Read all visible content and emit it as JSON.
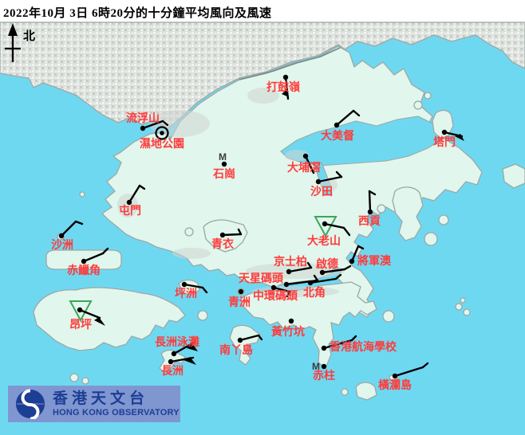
{
  "title": "2022年10月 3日 6時20分的十分鐘平均風向及風速",
  "north_label": "北",
  "colors": {
    "sea": "#6FD8F1",
    "land": "#E1F6EC",
    "coast": "#9BA8A6",
    "urban": "#DCE1DC",
    "label_red": "#FF3B3B",
    "barb_black": "#000000",
    "triangle_green": "#3FA45A",
    "logo_bar": "#8096D0",
    "logo_navy": "#1C3E94",
    "marker_gray": "#3B3B3B"
  },
  "logo": {
    "name_zh": "香港天文台",
    "name_en": "HONG KONG OBSERVATORY"
  },
  "stations": [
    {
      "id": "ta-kwu-ling",
      "name": "打鼓嶺",
      "label": [
        355,
        114
      ],
      "dot": [
        358,
        97
      ],
      "lines": [
        [
          [
            358,
            97
          ],
          [
            361,
            124
          ]
        ]
      ],
      "flags": [
        [
          [
            360,
            112
          ],
          [
            362,
            122
          ],
          [
            353,
            118
          ]
        ]
      ]
    },
    {
      "id": "lau-fau-shan",
      "name": "流浮山",
      "label": [
        179,
        153
      ],
      "dot": [
        179,
        161
      ],
      "lines": [
        [
          [
            179,
            161
          ],
          [
            204,
            152
          ]
        ],
        [
          [
            204,
            152
          ],
          [
            210,
            157
          ]
        ]
      ]
    },
    {
      "id": "wetland-park",
      "name": "濕地公園",
      "label": [
        203,
        185
      ],
      "dot": [
        203,
        167
      ],
      "marker": "calm"
    },
    {
      "id": "shek-kong",
      "name": "石崗",
      "label": [
        281,
        223
      ],
      "dot": [
        281,
        206
      ],
      "m": [
        279,
        201
      ]
    },
    {
      "id": "tai-mei-tuk",
      "name": "大美督",
      "label": [
        423,
        175
      ],
      "dot": [
        422,
        157
      ],
      "lines": [
        [
          [
            422,
            157
          ],
          [
            443,
            139
          ]
        ],
        [
          [
            443,
            139
          ],
          [
            450,
            145
          ]
        ]
      ]
    },
    {
      "id": "tai-po-kau",
      "name": "大埔滘",
      "label": [
        381,
        215
      ],
      "dot": [
        383,
        196
      ],
      "lines": [
        [
          [
            383,
            196
          ],
          [
            393,
            217
          ]
        ]
      ]
    },
    {
      "id": "sha-tin",
      "name": "沙田",
      "label": [
        403,
        245
      ],
      "dot": [
        399,
        228
      ],
      "lines": [
        [
          [
            399,
            228
          ],
          [
            428,
            222
          ]
        ],
        [
          [
            428,
            222
          ],
          [
            422,
            216
          ]
        ]
      ]
    },
    {
      "id": "tap-mun",
      "name": "塔門",
      "label": [
        557,
        183
      ],
      "dot": [
        557,
        166
      ],
      "lines": [
        [
          [
            557,
            166
          ],
          [
            579,
            171
          ]
        ]
      ],
      "flags": [
        [
          [
            577,
            168
          ],
          [
            582,
            177
          ],
          [
            570,
            171
          ]
        ]
      ]
    },
    {
      "id": "tuen-mun",
      "name": "屯門",
      "label": [
        163,
        269
      ],
      "dot": [
        162,
        254
      ],
      "lines": [
        [
          [
            162,
            254
          ],
          [
            175,
            233
          ]
        ],
        [
          [
            175,
            233
          ],
          [
            181,
            237
          ]
        ]
      ]
    },
    {
      "id": "sha-chau",
      "name": "沙洲",
      "label": [
        78,
        312
      ],
      "dot": [
        77,
        296
      ],
      "lines": [
        [
          [
            77,
            296
          ],
          [
            95,
            278
          ]
        ],
        [
          [
            95,
            278
          ],
          [
            103,
            281
          ]
        ]
      ]
    },
    {
      "id": "chek-lap-kok",
      "name": "赤鱲角",
      "label": [
        105,
        344
      ],
      "dot": [
        105,
        328
      ],
      "lines": [
        [
          [
            105,
            328
          ],
          [
            129,
            318
          ]
        ],
        [
          [
            129,
            318
          ],
          [
            135,
            312
          ]
        ]
      ]
    },
    {
      "id": "tsing-yi",
      "name": "青衣",
      "label": [
        279,
        311
      ],
      "dot": [
        279,
        295
      ],
      "lines": [
        [
          [
            279,
            295
          ],
          [
            302,
            294
          ]
        ],
        [
          [
            302,
            294
          ],
          [
            299,
            288
          ]
        ]
      ]
    },
    {
      "id": "tates-cairn",
      "name": "大老山",
      "label": [
        406,
        307
      ],
      "dot": [
        407,
        281
      ],
      "triangle": [
        [
          395,
          272
        ],
        [
          421,
          272
        ],
        [
          408,
          296
        ]
      ],
      "lines": [
        [
          [
            407,
            281
          ],
          [
            431,
            286
          ],
          [
            438,
            295
          ]
        ]
      ]
    },
    {
      "id": "sai-kung",
      "name": "西貢",
      "label": [
        463,
        282
      ],
      "dot": [
        464,
        266
      ],
      "lines": [
        [
          [
            464,
            266
          ],
          [
            463,
            240
          ]
        ],
        [
          [
            463,
            240
          ],
          [
            470,
            244
          ]
        ]
      ]
    },
    {
      "id": "tseung-kwan-o",
      "name": "將軍澳",
      "label": [
        469,
        332
      ],
      "dot": [
        441,
        328
      ],
      "lines": [
        [
          [
            441,
            328
          ],
          [
            449,
            309
          ]
        ],
        [
          [
            449,
            309
          ],
          [
            455,
            312
          ]
        ]
      ]
    },
    {
      "id": "kings-park",
      "name": "京士柏",
      "label": [
        364,
        333
      ],
      "dot": [
        362,
        341
      ],
      "lines": [
        [
          [
            362,
            341
          ],
          [
            390,
            336
          ]
        ],
        [
          [
            390,
            336
          ],
          [
            386,
            330
          ]
        ]
      ]
    },
    {
      "id": "kai-tak",
      "name": "啟德",
      "label": [
        410,
        336
      ],
      "dot": [
        404,
        342
      ],
      "lines": [
        [
          [
            404,
            342
          ],
          [
            432,
            338
          ]
        ],
        [
          [
            432,
            338
          ],
          [
            439,
            334
          ]
        ]
      ]
    },
    {
      "id": "star-ferry",
      "name": "天星碼頭",
      "label": [
        327,
        354
      ],
      "dot": [
        359,
        357
      ],
      "lines": [
        [
          [
            359,
            357
          ],
          [
            398,
            352
          ]
        ],
        [
          [
            398,
            352
          ],
          [
            394,
            346
          ]
        ]
      ]
    },
    {
      "id": "north-point",
      "name": "北角",
      "label": [
        394,
        372
      ],
      "dot": [
        389,
        355
      ],
      "lines": [
        [
          [
            389,
            355
          ],
          [
            421,
            350
          ]
        ],
        [
          [
            421,
            350
          ],
          [
            427,
            345
          ]
        ]
      ]
    },
    {
      "id": "central-pier",
      "name": "中環碼頭",
      "label": [
        345,
        376
      ],
      "dot": [
        343,
        361
      ],
      "lines": [
        [
          [
            343,
            361
          ],
          [
            363,
            366
          ]
        ],
        [
          [
            363,
            366
          ],
          [
            360,
            372
          ]
        ]
      ]
    },
    {
      "id": "green-island",
      "name": "青洲",
      "label": [
        300,
        384
      ],
      "dot": [
        302,
        366
      ]
    },
    {
      "id": "peng-chau",
      "name": "坪洲",
      "label": [
        233,
        373
      ],
      "dot": [
        231,
        357
      ],
      "lines": [
        [
          [
            231,
            357
          ],
          [
            254,
            361
          ]
        ],
        [
          [
            254,
            361
          ],
          [
            259,
            367
          ]
        ]
      ]
    },
    {
      "id": "ngong-ping",
      "name": "昂坪",
      "label": [
        101,
        412
      ],
      "dot": [
        100,
        389
      ],
      "triangle": [
        [
          88,
          378
        ],
        [
          114,
          378
        ],
        [
          101,
          402
        ]
      ],
      "lines": [
        [
          [
            100,
            389
          ],
          [
            125,
            399
          ]
        ]
      ],
      "flags": [
        [
          [
            124,
            398
          ],
          [
            132,
            409
          ],
          [
            118,
            402
          ]
        ]
      ]
    },
    {
      "id": "cheung-chau-beach",
      "name": "長洲泳灘",
      "label": [
        222,
        434
      ],
      "dot": [
        218,
        444
      ],
      "lines": [
        [
          [
            218,
            444
          ],
          [
            243,
            430
          ]
        ]
      ],
      "flags": [
        [
          [
            241,
            431
          ],
          [
            248,
            441
          ],
          [
            234,
            437
          ]
        ]
      ]
    },
    {
      "id": "cheung-chau",
      "name": "長洲",
      "label": [
        216,
        470
      ],
      "dot": [
        214,
        454
      ],
      "lines": [
        [
          [
            214,
            454
          ],
          [
            242,
            449
          ]
        ]
      ],
      "flags": [
        [
          [
            238,
            448
          ],
          [
            246,
            458
          ],
          [
            230,
            452
          ]
        ]
      ]
    },
    {
      "id": "lamma-island",
      "name": "南丫島",
      "label": [
        296,
        444
      ],
      "dot": [
        301,
        427
      ],
      "lines": [
        [
          [
            301,
            427
          ],
          [
            324,
            421
          ]
        ],
        [
          [
            324,
            421
          ],
          [
            328,
            426
          ]
        ]
      ]
    },
    {
      "id": "wong-chuk-hang",
      "name": "黃竹坑",
      "label": [
        361,
        421
      ],
      "dot": [
        365,
        403
      ]
    },
    {
      "id": "sea-school",
      "name": "香港航海學校",
      "label": [
        455,
        440
      ],
      "dot": [
        406,
        437
      ],
      "lines": [
        [
          [
            406,
            437
          ],
          [
            441,
            427
          ]
        ],
        [
          [
            441,
            427
          ],
          [
            446,
            422
          ]
        ]
      ]
    },
    {
      "id": "stanley",
      "name": "赤柱",
      "label": [
        406,
        476
      ],
      "dot": [
        406,
        460
      ],
      "m": [
        396,
        464
      ]
    },
    {
      "id": "waglan-island",
      "name": "橫瀾島",
      "label": [
        495,
        488
      ],
      "dot": [
        495,
        472
      ],
      "lines": [
        [
          [
            495,
            472
          ],
          [
            530,
            461
          ]
        ],
        [
          [
            530,
            461
          ],
          [
            536,
            456
          ]
        ]
      ]
    }
  ]
}
